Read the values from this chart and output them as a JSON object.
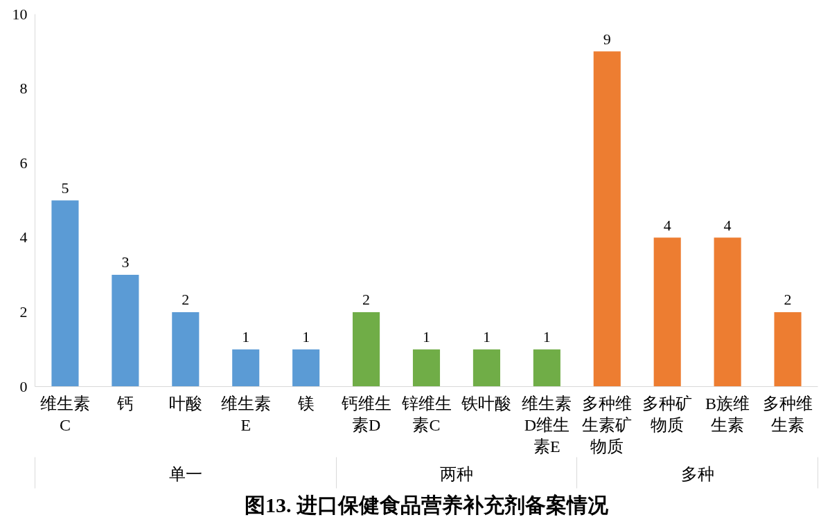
{
  "chart_data": {
    "type": "bar",
    "title": "图13. 进口保健食品营养补充剂备案情况",
    "categories": [
      "维生素C",
      "钙",
      "叶酸",
      "维生素E",
      "镁",
      "钙维生素D",
      "锌维生素C",
      "铁叶酸",
      "维生素D维生素E",
      "多种维生素矿物质",
      "多种矿物质",
      "B族维生素",
      "多种维生素"
    ],
    "values": [
      5,
      3,
      2,
      1,
      1,
      2,
      1,
      1,
      1,
      9,
      4,
      4,
      2
    ],
    "colors": [
      "#5b9bd5",
      "#5b9bd5",
      "#5b9bd5",
      "#5b9bd5",
      "#5b9bd5",
      "#70ad47",
      "#70ad47",
      "#70ad47",
      "#70ad47",
      "#ed7d31",
      "#ed7d31",
      "#ed7d31",
      "#ed7d31"
    ],
    "annotations": [
      "单一",
      "两种",
      "多种"
    ],
    "ylim": [
      0,
      10
    ],
    "yticks": [
      0,
      2,
      4,
      6,
      8,
      10
    ],
    "grid": false,
    "data_labels": true
  }
}
